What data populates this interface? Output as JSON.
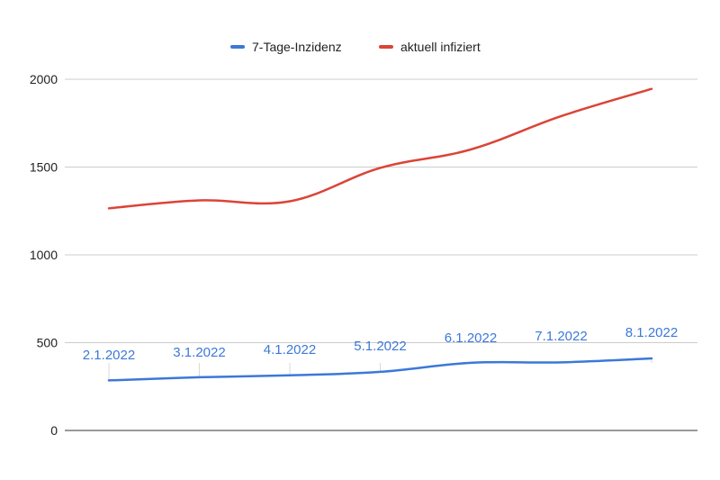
{
  "chart_data": {
    "type": "line",
    "title": "",
    "xlabel": "",
    "ylabel": "",
    "categories": [
      "2.1.2022",
      "3.1.2022",
      "4.1.2022",
      "5.1.2022",
      "6.1.2022",
      "7.1.2022",
      "8.1.2022"
    ],
    "series": [
      {
        "name": "7-Tage-Inzidenz",
        "color": "#3c78d8",
        "values": [
          285,
          303,
          314,
          334,
          385,
          388,
          410
        ]
      },
      {
        "name": "aktuell infiziert",
        "color": "#db4437",
        "values": [
          1265,
          1310,
          1305,
          1495,
          1600,
          1790,
          1945
        ]
      }
    ],
    "yticks": [
      "0",
      "500",
      "1000",
      "1500",
      "2000"
    ],
    "ylim": [
      0,
      2000
    ],
    "grid": true,
    "legend_position": "top"
  }
}
